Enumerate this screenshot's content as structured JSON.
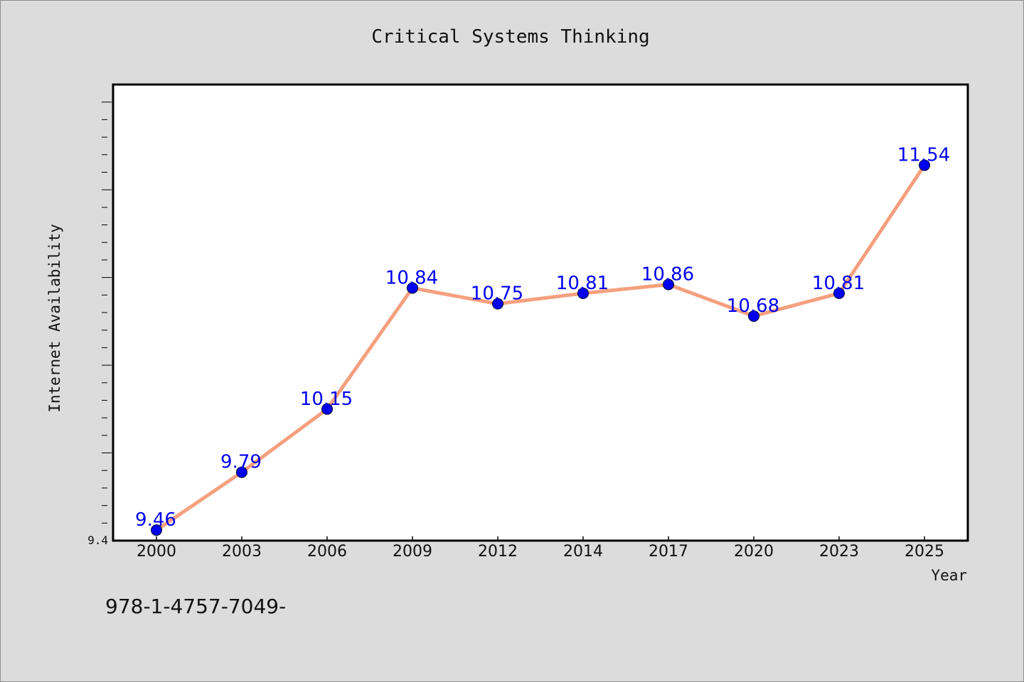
{
  "chart_data": {
    "type": "line",
    "title": "Critical Systems Thinking",
    "xlabel": "Year",
    "ylabel": "Internet Availability",
    "categories": [
      "2000",
      "2003",
      "2006",
      "2009",
      "2012",
      "2014",
      "2017",
      "2020",
      "2023",
      "2025"
    ],
    "series": [
      {
        "values": [
          9.46,
          9.79,
          10.15,
          10.84,
          10.75,
          10.81,
          10.86,
          10.68,
          10.81,
          11.54
        ]
      }
    ],
    "data_labels": [
      "9.46",
      "9.79",
      "10.15",
      "10.84",
      "10.75",
      "10.81",
      "10.86",
      "10.68",
      "10.81",
      "11.54"
    ],
    "y_tick_labels": [
      "9.4"
    ],
    "ylim": [
      9.4,
      12.0
    ],
    "grid": false,
    "legend": "none",
    "colors": {
      "line": "#f5a07e",
      "marker": "#0000ee",
      "data_label": "#0000ee",
      "plot_background": "#ffffff",
      "page_background": "#dcdcdc"
    }
  },
  "footnote": "978-1-4757-7049-"
}
